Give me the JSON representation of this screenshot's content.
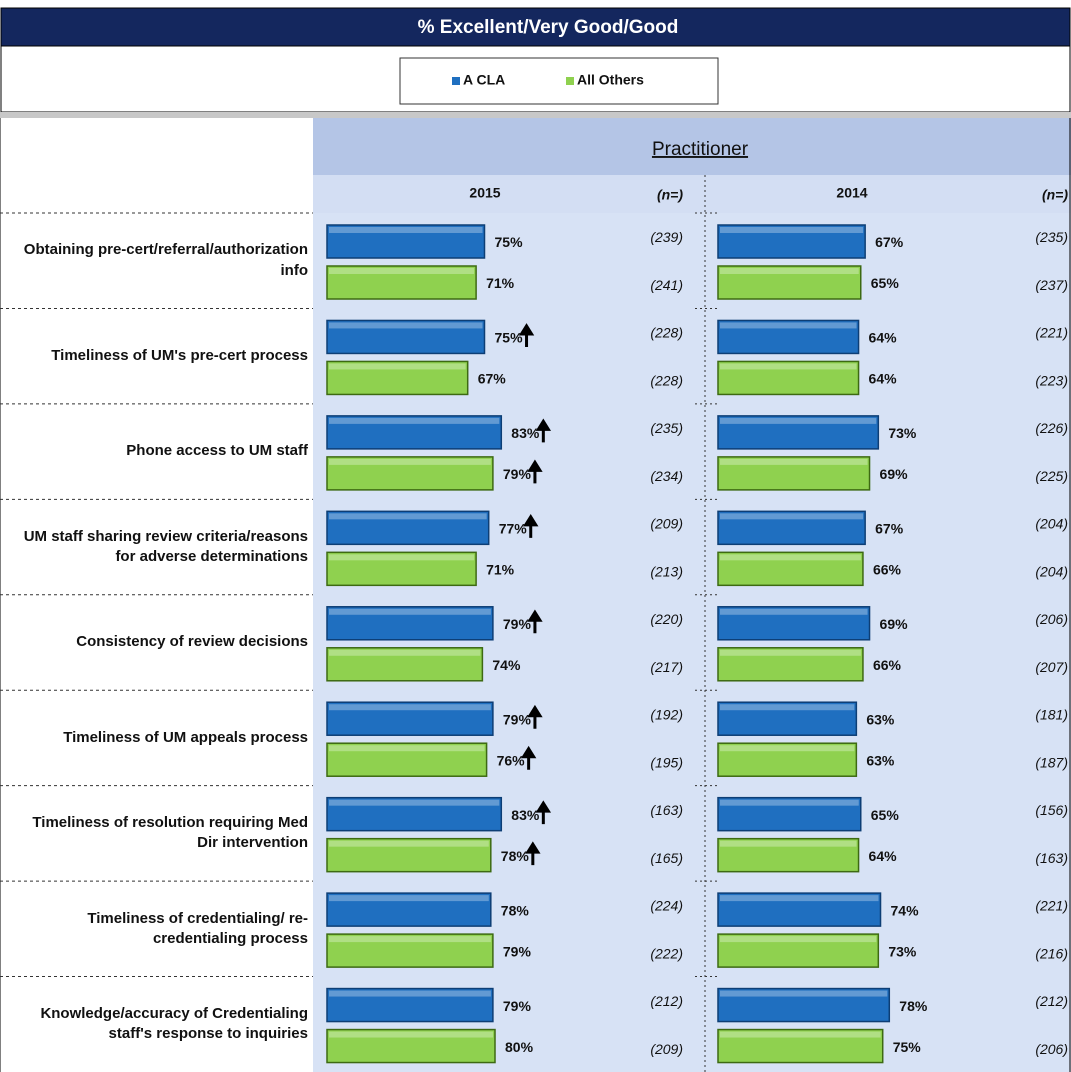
{
  "chart_data": {
    "type": "bar",
    "orientation": "horizontal",
    "title": "% Excellent/Very Good/Good",
    "group_label": "Practitioner",
    "series": [
      {
        "name": "A CLA",
        "color": "#1f6fc0"
      },
      {
        "name": "All Others",
        "color": "#8fd14f"
      }
    ],
    "categories": [
      "Obtaining pre-cert/referral/authorization info",
      "Timeliness of UM's pre-cert process",
      "Phone access to UM staff",
      "UM staff sharing review criteria/reasons for adverse determinations",
      "Consistency of review decisions",
      "Timeliness of UM appeals process",
      "Timeliness of resolution requiring Med Dir intervention",
      "Timeliness of credentialing/ re-credentialing process",
      "Knowledge/accuracy of Credentialing staff's response to inquiries"
    ],
    "panels": [
      {
        "name": "2015",
        "n_header": "(n=)",
        "xlim": [
          0,
          180
        ],
        "series": [
          {
            "values": [
              75,
              75,
              83,
              77,
              79,
              79,
              83,
              78,
              79
            ],
            "value_labels": [
              "75%",
              "75%",
              "83%",
              "77%",
              "79%",
              "79%",
              "83%",
              "78%",
              "79%"
            ],
            "n_labels": [
              "(239)",
              "(228)",
              "(235)",
              "(209)",
              "(220)",
              "(192)",
              "(163)",
              "(224)",
              "(212)"
            ],
            "significant_up": [
              false,
              true,
              true,
              true,
              true,
              true,
              true,
              false,
              false
            ]
          },
          {
            "values": [
              71,
              67,
              79,
              71,
              74,
              76,
              78,
              79,
              80
            ],
            "value_labels": [
              "71%",
              "67%",
              "79%",
              "71%",
              "74%",
              "76%",
              "78%",
              "79%",
              "80%"
            ],
            "n_labels": [
              "(241)",
              "(228)",
              "(234)",
              "(213)",
              "(217)",
              "(195)",
              "(165)",
              "(222)",
              "(209)"
            ],
            "significant_up": [
              false,
              false,
              true,
              false,
              false,
              true,
              true,
              false,
              false
            ]
          }
        ]
      },
      {
        "name": "2014",
        "n_header": "(n=)",
        "xlim": [
          0,
          158
        ],
        "series": [
          {
            "values": [
              67,
              64,
              73,
              67,
              69,
              63,
              65,
              74,
              78
            ],
            "value_labels": [
              "67%",
              "64%",
              "73%",
              "67%",
              "69%",
              "63%",
              "65%",
              "74%",
              "78%"
            ],
            "n_labels": [
              "(235)",
              "(221)",
              "(226)",
              "(204)",
              "(206)",
              "(181)",
              "(156)",
              "(221)",
              "(212)"
            ],
            "significant_up": [
              false,
              false,
              false,
              false,
              false,
              false,
              false,
              false,
              false
            ]
          },
          {
            "values": [
              65,
              64,
              69,
              66,
              66,
              63,
              64,
              73,
              75
            ],
            "value_labels": [
              "65%",
              "64%",
              "69%",
              "66%",
              "66%",
              "63%",
              "64%",
              "73%",
              "75%"
            ],
            "n_labels": [
              "(237)",
              "(223)",
              "(225)",
              "(204)",
              "(207)",
              "(187)",
              "(163)",
              "(216)",
              "(206)"
            ],
            "significant_up": [
              false,
              false,
              false,
              false,
              false,
              false,
              false,
              false,
              false
            ]
          }
        ]
      }
    ]
  }
}
